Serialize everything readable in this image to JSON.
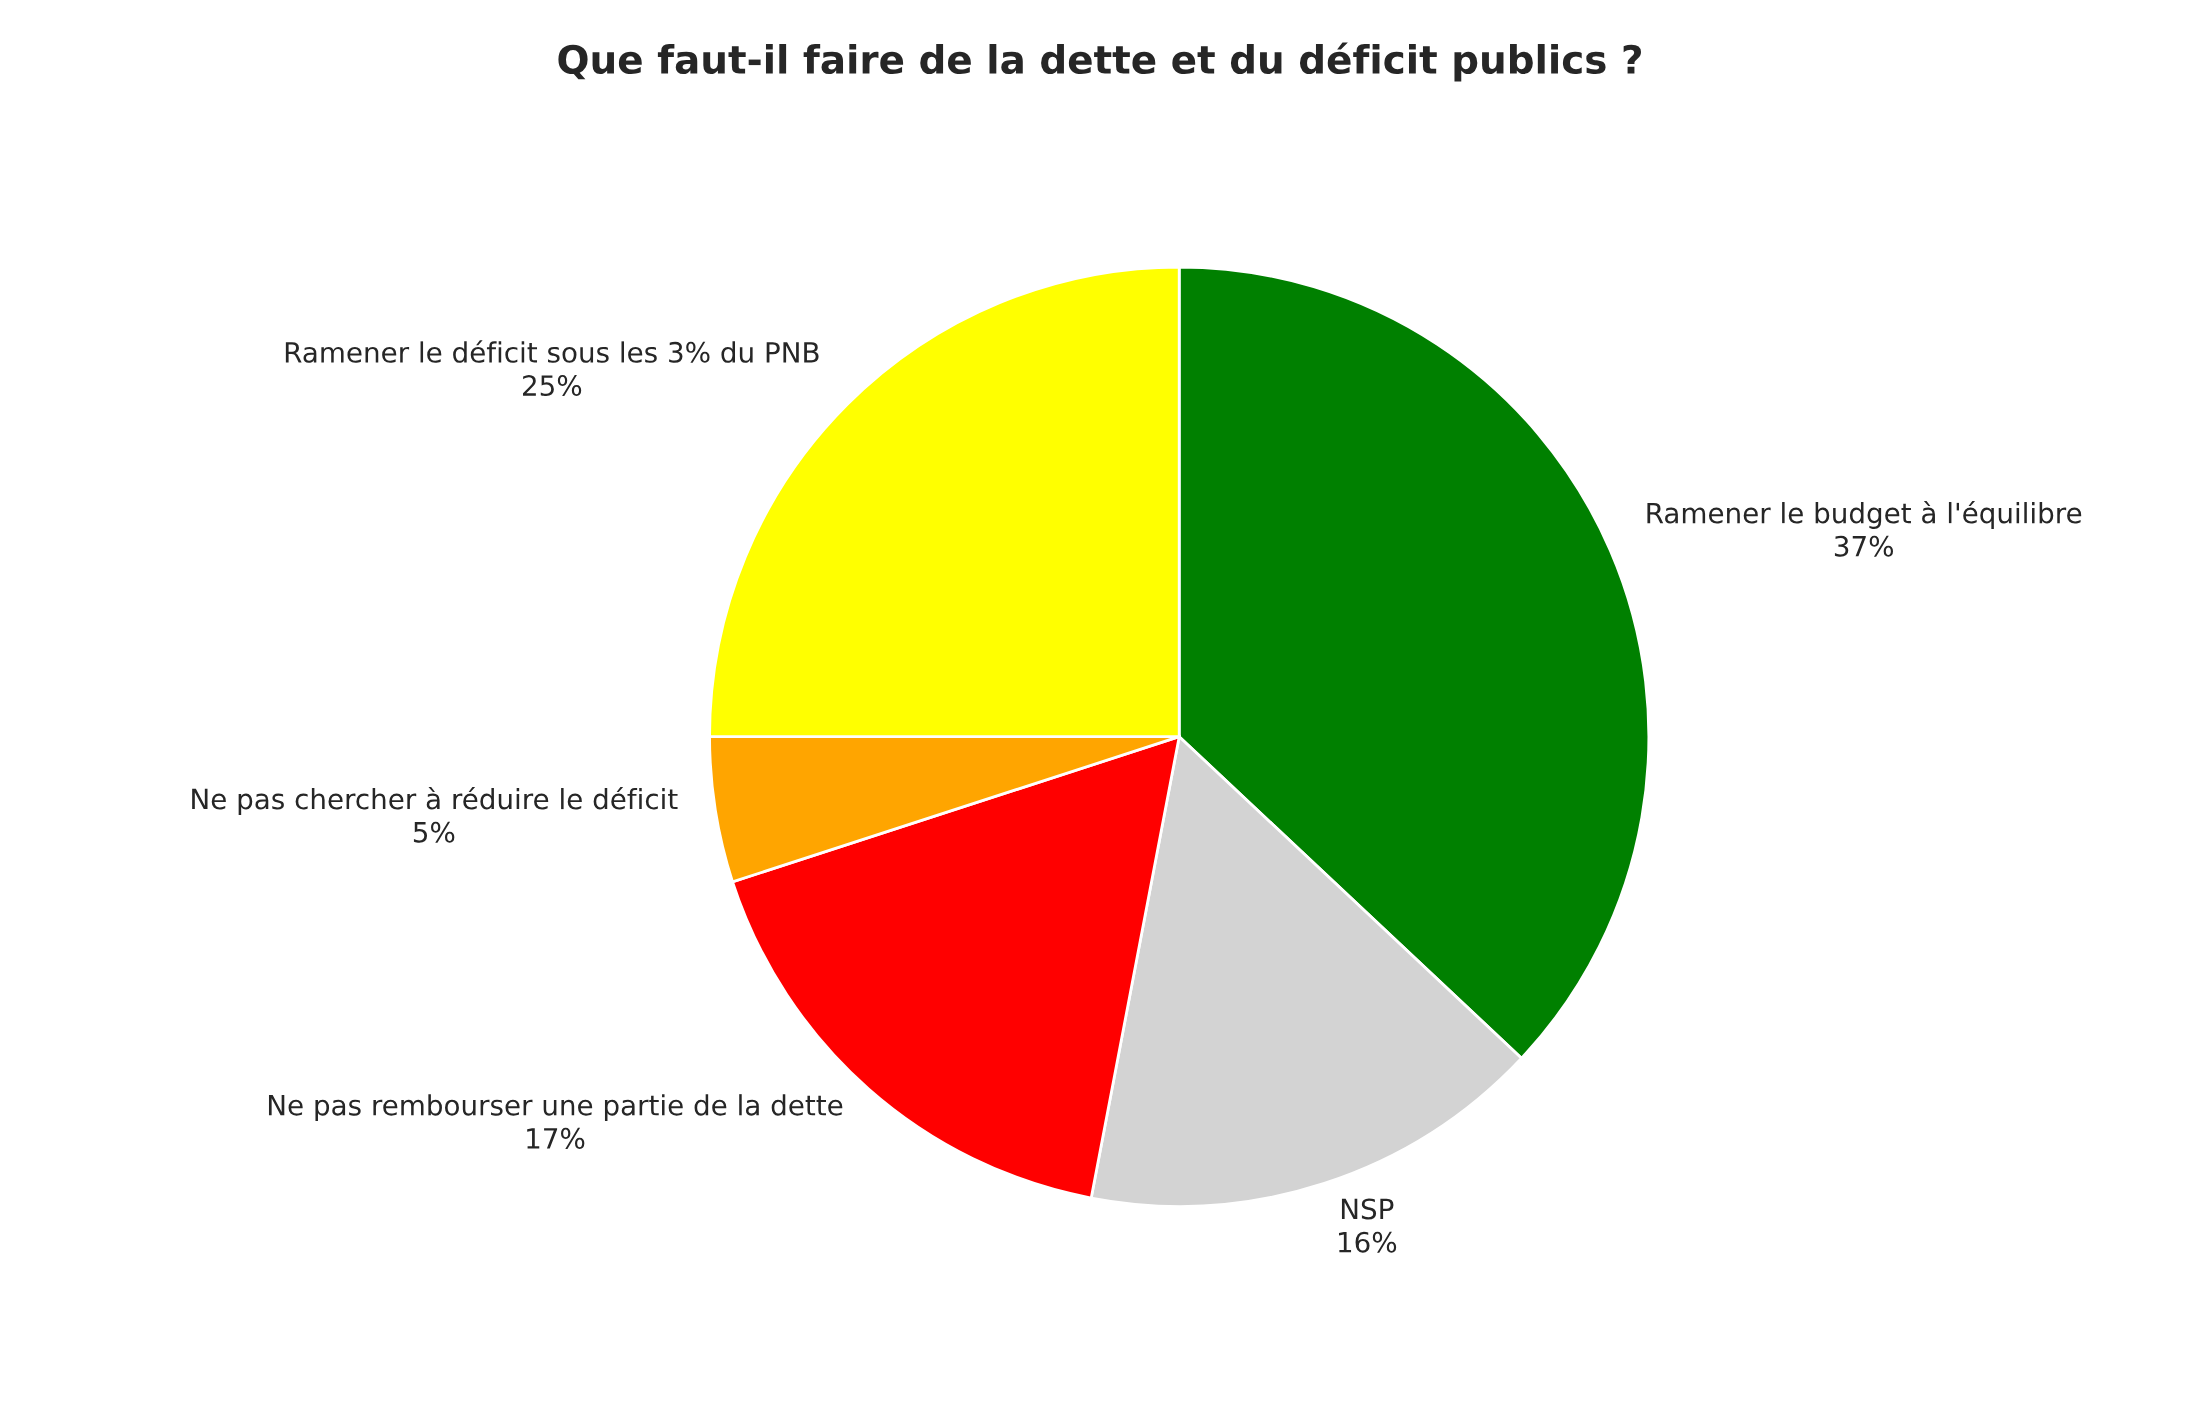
{
  "chart_data": {
    "type": "pie",
    "title": "Que faut-il faire de la dette et du déficit publics ?",
    "categories": [
      "Ramener le budget à l'équilibre",
      "NSP",
      "Ne pas rembourser une partie de la dette",
      "Ne pas chercher à réduire le déficit",
      "Ramener le déficit sous les 3% du PNB"
    ],
    "values": [
      37,
      16,
      17,
      5,
      25
    ],
    "colors": [
      "#008000",
      "#d3d3d3",
      "#ff0000",
      "#ffa500",
      "#ffff00"
    ],
    "value_labels": [
      "37%",
      "16%",
      "17%",
      "5%",
      "25%"
    ]
  }
}
